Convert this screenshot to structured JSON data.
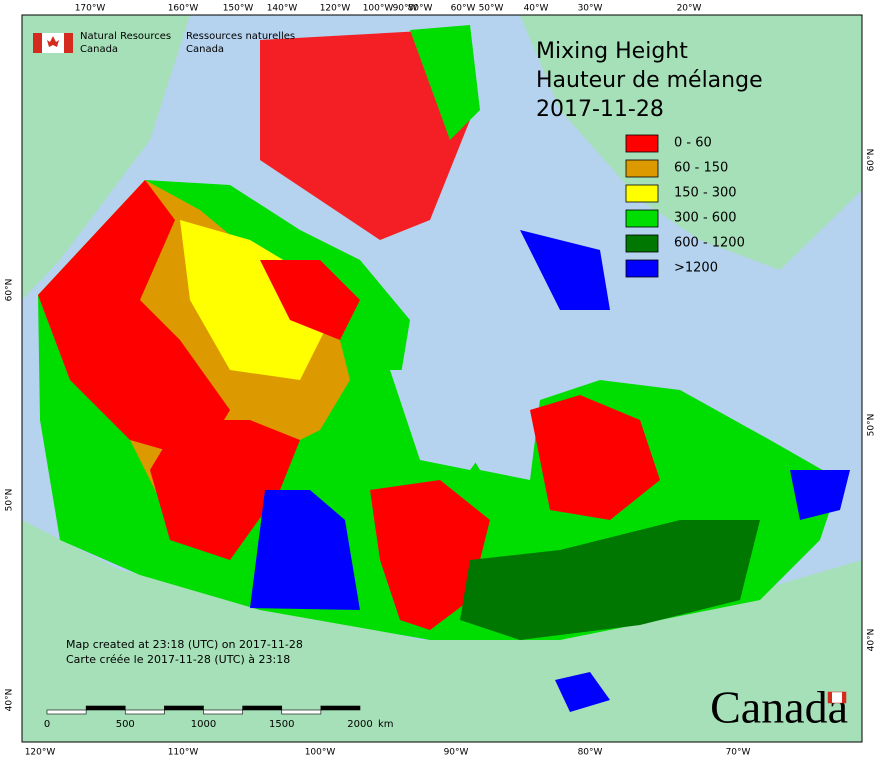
{
  "header": {
    "agency_en": "Natural Resources",
    "agency_en_2": "Canada",
    "agency_fr": "Ressources naturelles",
    "agency_fr_2": "Canada"
  },
  "title": [
    "Mixing Height",
    "Hauteur de mélange",
    "2017-11-28"
  ],
  "legend": [
    {
      "label": "0 - 60",
      "color": "#ff0000"
    },
    {
      "label": "60 - 150",
      "color": "#dd9a00"
    },
    {
      "label": "150 - 300",
      "color": "#ffff00"
    },
    {
      "label": "300 - 600",
      "color": "#00dd00"
    },
    {
      "label": "600 - 1200",
      "color": "#007700"
    },
    {
      "label": ">1200",
      "color": "#0000ff"
    }
  ],
  "top_labels": [
    "170°W",
    "160°W",
    "150°W",
    "140°W",
    "120°W",
    "100°W",
    "90°W",
    "80°W",
    "60°W",
    "50°W",
    "40°W",
    "30°W",
    "20°W"
  ],
  "bottom_labels": [
    "120°W",
    "110°W",
    "100°W",
    "90°W",
    "80°W",
    "70°W"
  ],
  "left_labels": [
    "60°N",
    "50°N",
    "40°N"
  ],
  "right_labels": [
    "60°N",
    "50°N",
    "40°N"
  ],
  "scale": {
    "labels": [
      "0",
      "500",
      "1000",
      "1500",
      "2000"
    ],
    "unit": "km"
  },
  "footnote": [
    "Map created at 23:18 (UTC) on 2017-11-28",
    "Carte créée le 2017-11-28 (UTC) à 23:18"
  ],
  "wordmark": "Canada"
}
